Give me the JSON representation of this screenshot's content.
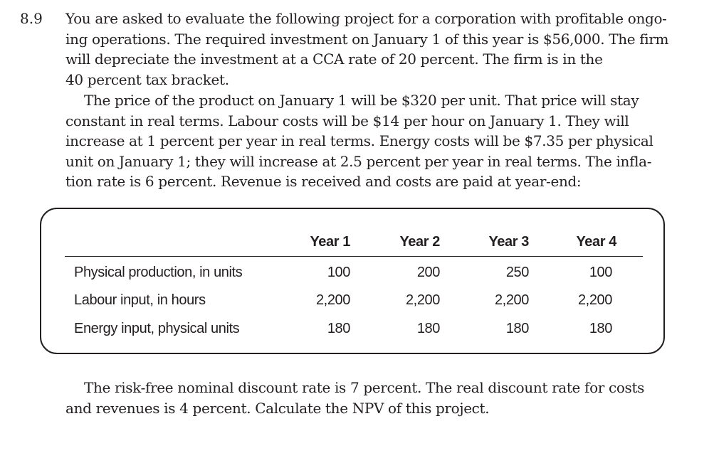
{
  "problem": {
    "number": "8.9",
    "intro_lines": [
      "You are asked to evaluate the following project for a corporation with profitable ongo-",
      "ing operations. The required investment on January 1 of this year is $56,000. The firm",
      "will depreciate the investment at a CCA rate of 20 percent. The firm is in the",
      "40 percent tax bracket."
    ],
    "cost_lines": [
      "The price of the product on January 1 will be $320 per unit. That price will stay",
      "constant in real terms. Labour costs will be $14 per hour on January 1. They will",
      "increase at 1 percent per year in real terms. Energy costs will be $7.35 per physical",
      "unit on January 1; they will increase at 2.5 percent per year in real terms. The infla-",
      "tion rate is 6 percent. Revenue is received and costs are paid at year-end:"
    ],
    "closing_lines": [
      "The risk-free nominal discount rate is 7 percent. The real discount rate for costs",
      "and revenues is 4 percent. Calculate the NPV of this project."
    ]
  },
  "table": {
    "columns": [
      "Year 1",
      "Year 2",
      "Year 3",
      "Year 4"
    ],
    "rows": [
      {
        "label": "Physical production, in units",
        "values": [
          "100",
          "200",
          "250",
          "100"
        ]
      },
      {
        "label": "Labour input, in hours",
        "values": [
          "2,200",
          "2,200",
          "2,200",
          "2,200"
        ]
      },
      {
        "label": "Energy input, physical units",
        "values": [
          "180",
          "180",
          "180",
          "180"
        ]
      }
    ]
  }
}
